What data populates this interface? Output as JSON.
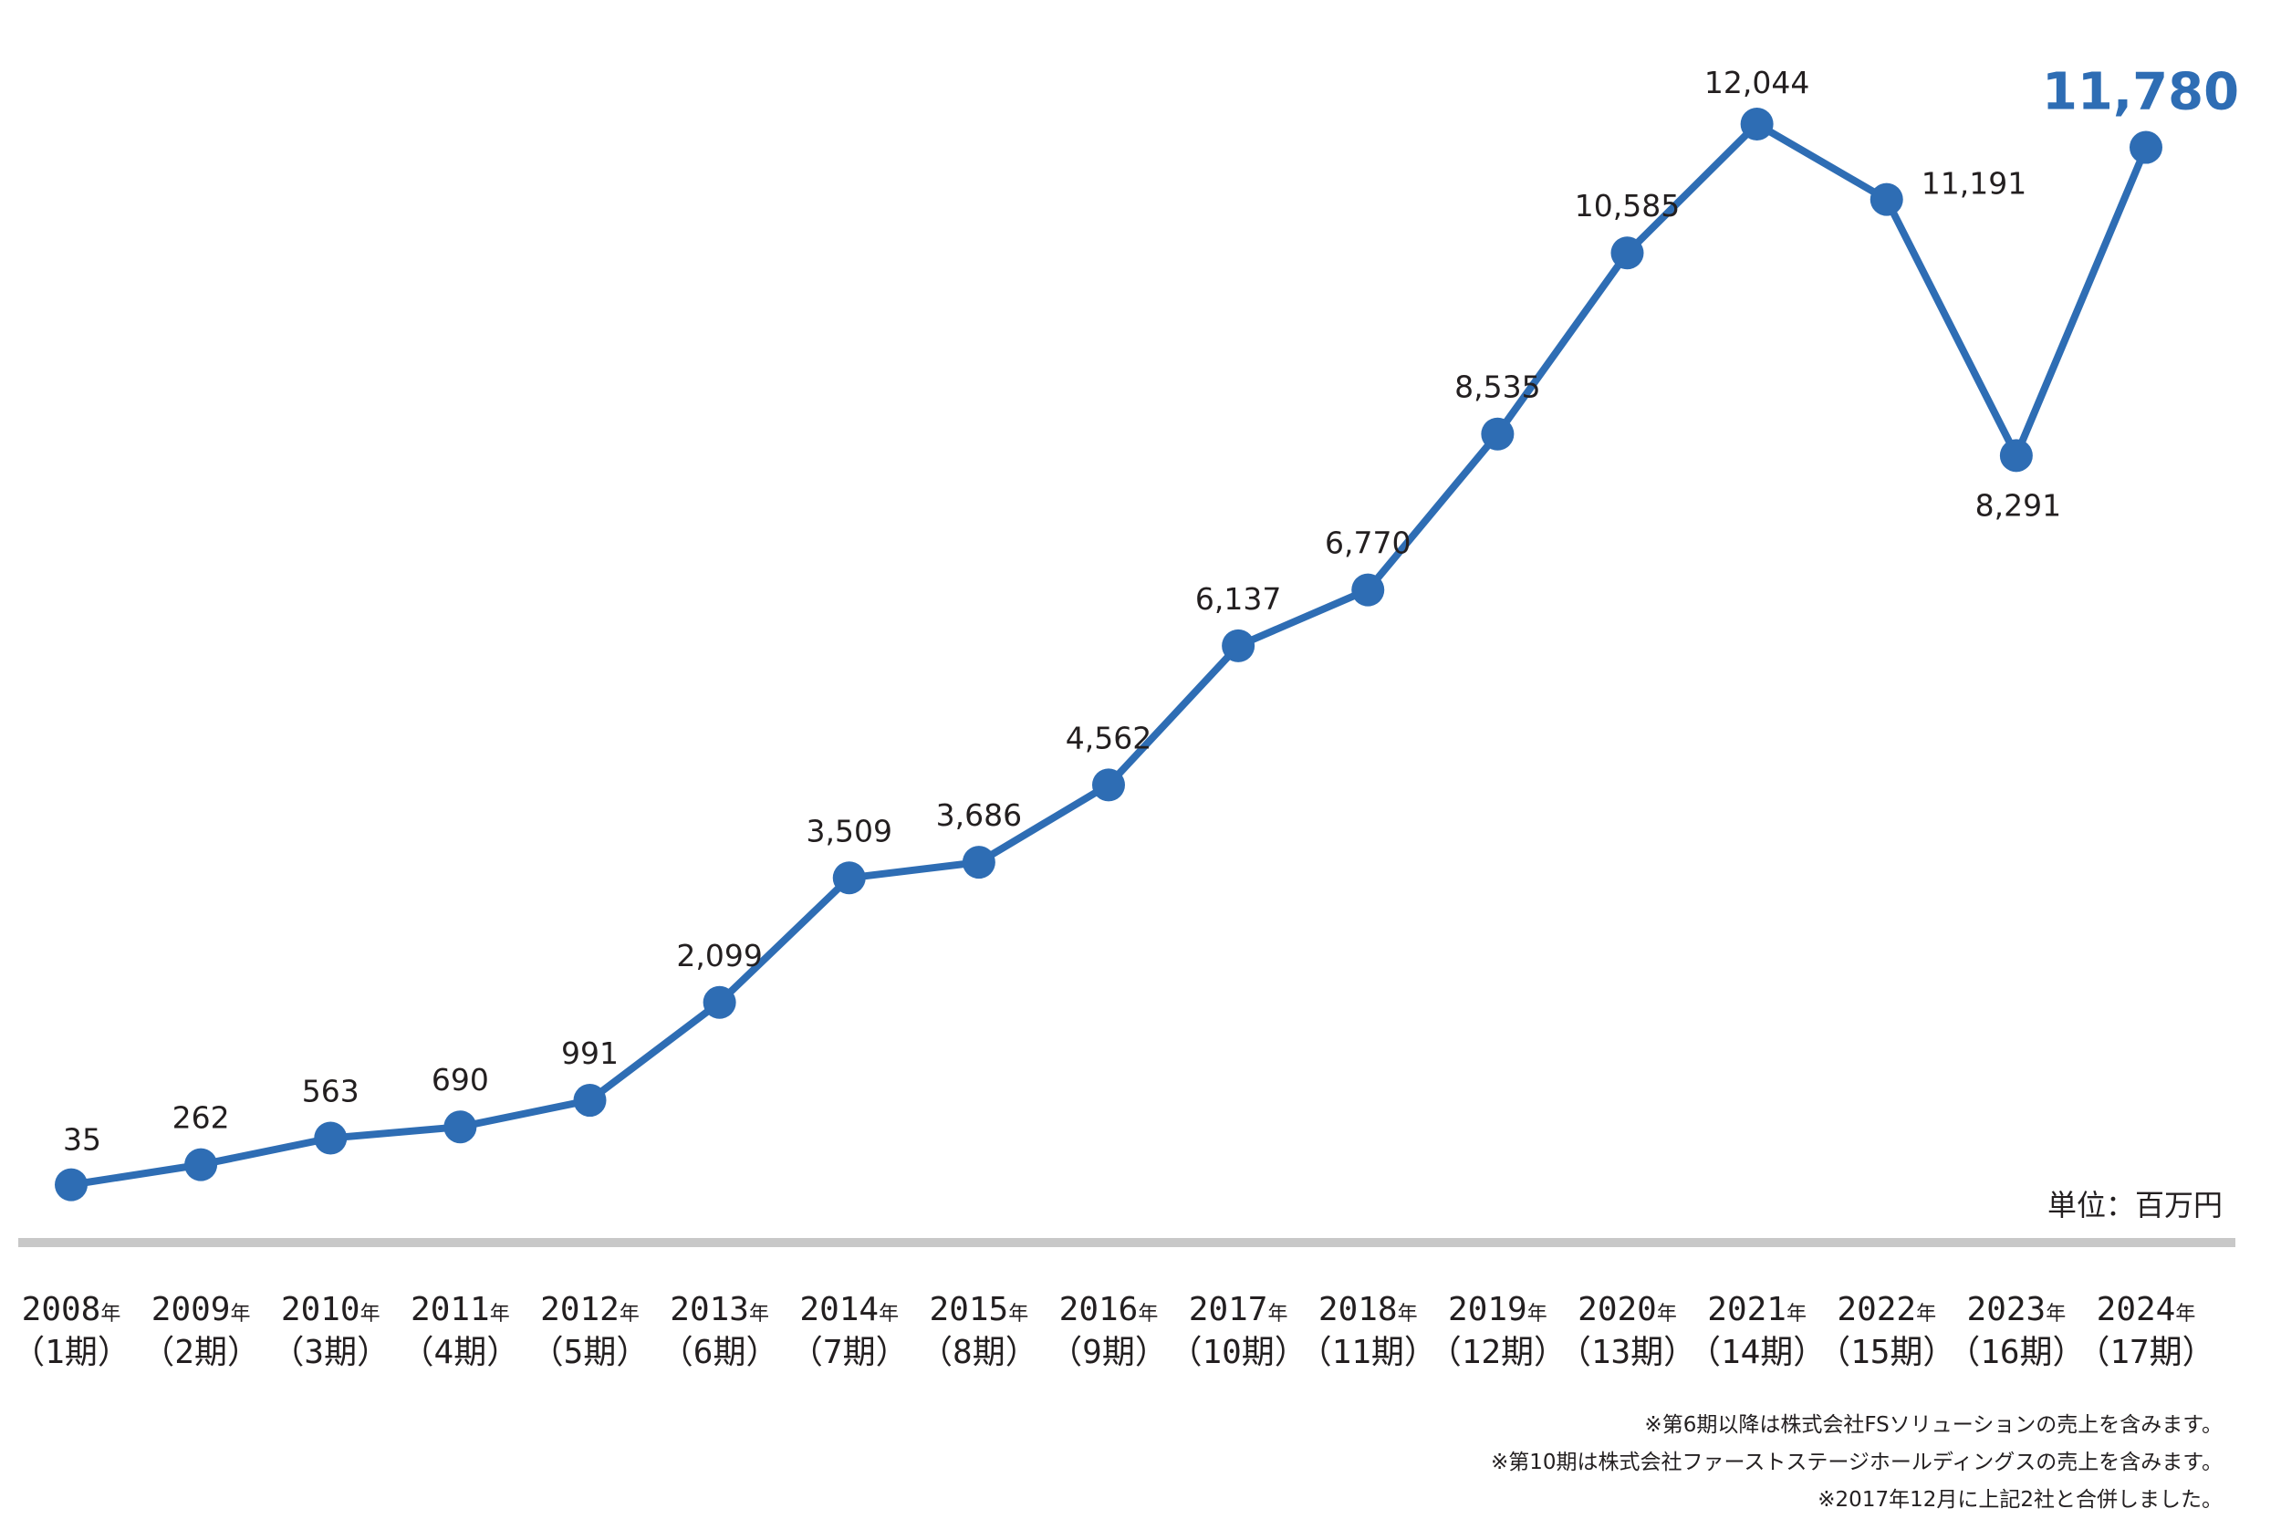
{
  "chart_data": {
    "type": "line",
    "categories": [
      {
        "year": "2008",
        "suffix": "年",
        "period": "（1期）"
      },
      {
        "year": "2009",
        "suffix": "年",
        "period": "（2期）"
      },
      {
        "year": "2010",
        "suffix": "年",
        "period": "（3期）"
      },
      {
        "year": "2011",
        "suffix": "年",
        "period": "（4期）"
      },
      {
        "year": "2012",
        "suffix": "年",
        "period": "（5期）"
      },
      {
        "year": "2013",
        "suffix": "年",
        "period": "（6期）"
      },
      {
        "year": "2014",
        "suffix": "年",
        "period": "（7期）"
      },
      {
        "year": "2015",
        "suffix": "年",
        "period": "（8期）"
      },
      {
        "year": "2016",
        "suffix": "年",
        "period": "（9期）"
      },
      {
        "year": "2017",
        "suffix": "年",
        "period": "（10期）"
      },
      {
        "year": "2018",
        "suffix": "年",
        "period": "（11期）"
      },
      {
        "year": "2019",
        "suffix": "年",
        "period": "（12期）"
      },
      {
        "year": "2020",
        "suffix": "年",
        "period": "（13期）"
      },
      {
        "year": "2021",
        "suffix": "年",
        "period": "（14期）"
      },
      {
        "year": "2022",
        "suffix": "年",
        "period": "（15期）"
      },
      {
        "year": "2023",
        "suffix": "年",
        "period": "（16期）"
      },
      {
        "year": "2024",
        "suffix": "年",
        "period": "（17期）"
      }
    ],
    "values": [
      35,
      262,
      563,
      690,
      991,
      2099,
      3509,
      3686,
      4562,
      6137,
      6770,
      8535,
      10585,
      12044,
      11191,
      8291,
      11780
    ],
    "labels": [
      "35",
      "262",
      "563",
      "690",
      "991",
      "2,099",
      "3,509",
      "3,686",
      "4,562",
      "6,137",
      "6,770",
      "8,535",
      "10,585",
      "12,044",
      "11,191",
      "8,291",
      "11,780"
    ],
    "highlight_index": 16,
    "ylim": [
      0,
      12500
    ],
    "grid": false,
    "unit": "単位：百万円",
    "colors": {
      "line": "#2e6db4",
      "highlight": "#2e6db4",
      "baseline": "#c8c8c8"
    }
  },
  "notes": [
    "※第6期以降は株式会社FSソリューションの売上を含みます。",
    "※第10期は株式会社ファーストステージホールディングスの売上を含みます。",
    "※2017年12月に上記2社と合併しました。"
  ]
}
